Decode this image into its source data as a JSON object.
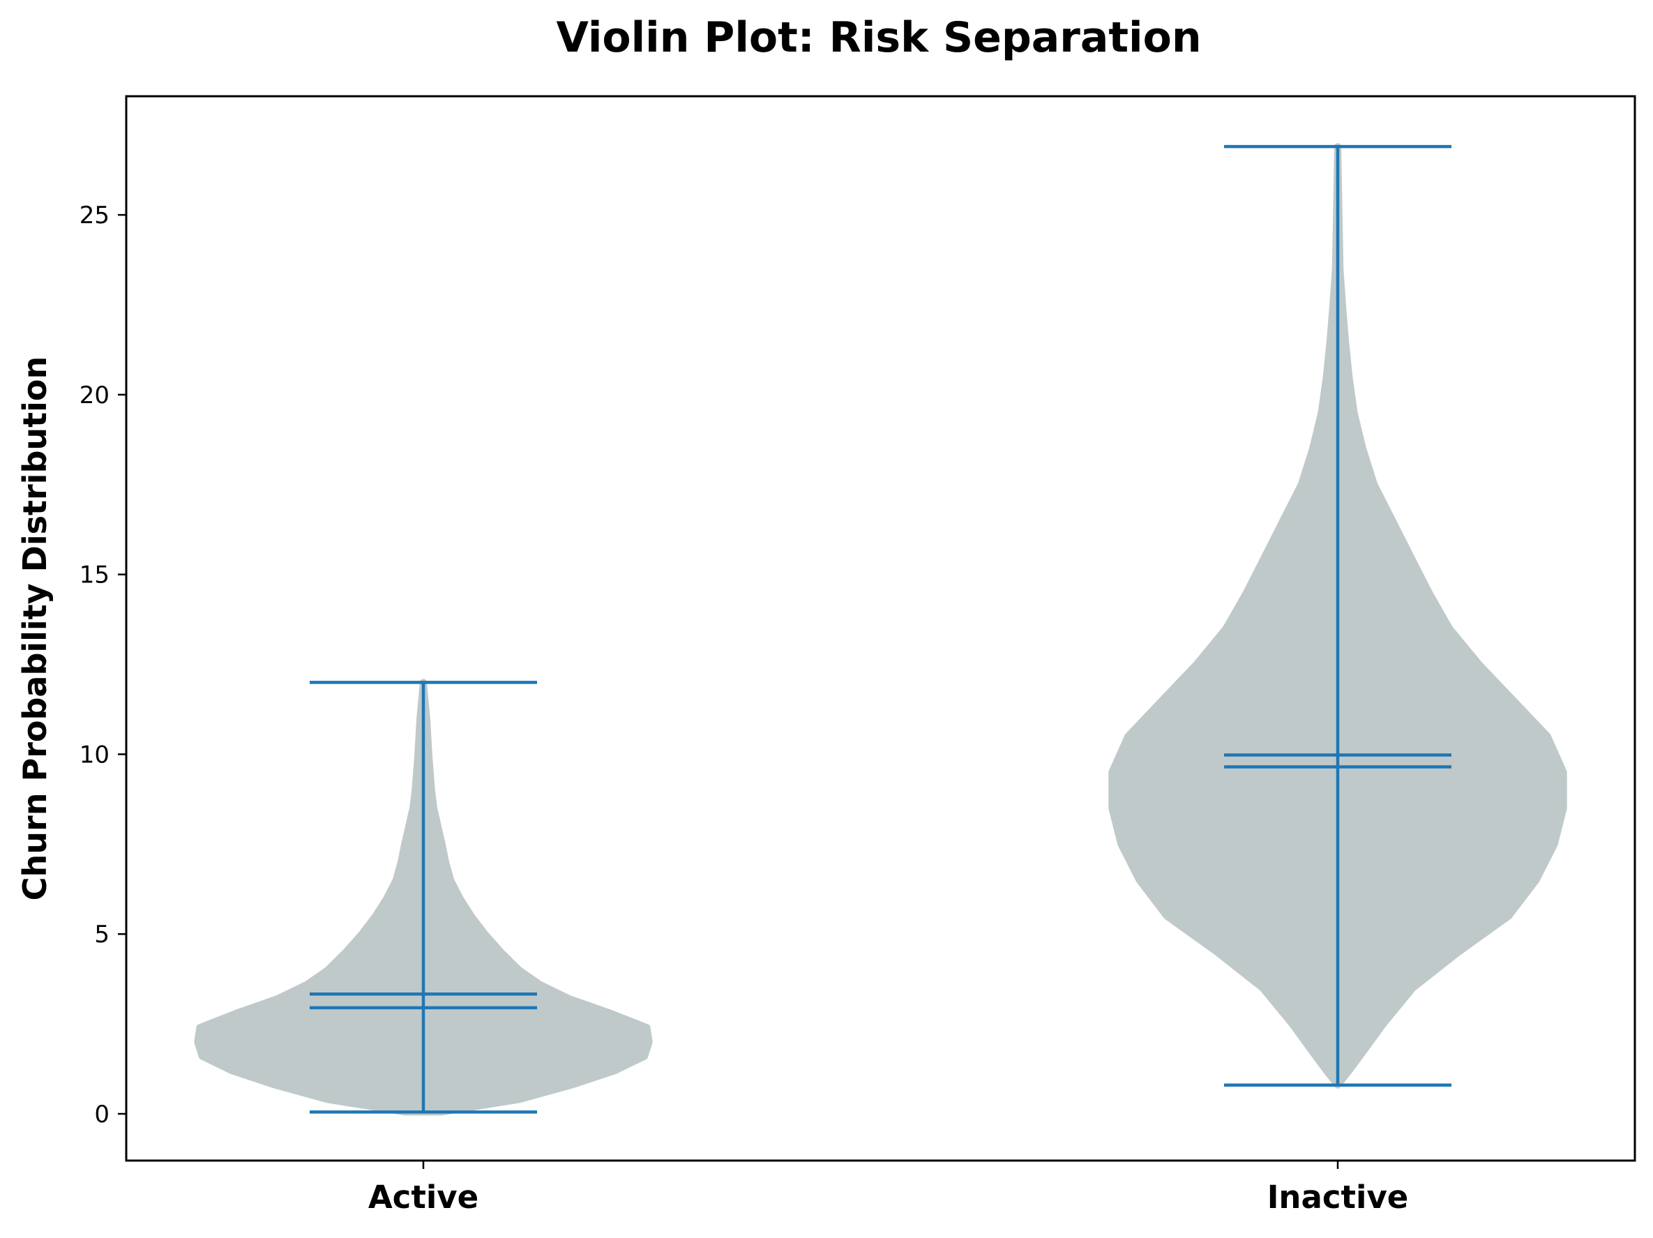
{
  "chart_data": {
    "type": "violin",
    "title": "Violin Plot: Risk Separation",
    "xlabel": "",
    "ylabel": "Churn Probability Distribution",
    "categories": [
      "Active",
      "Inactive"
    ],
    "yticks": [
      0,
      5,
      10,
      15,
      20,
      25
    ],
    "ylim": [
      -1.3,
      28.3
    ],
    "grid": false,
    "colors": {
      "body": "#c0c9c9",
      "lines": "#1f77b4"
    },
    "series": [
      {
        "category": "Active",
        "min": 0.05,
        "max": 12.0,
        "mean": 3.33,
        "median": 2.95,
        "density": [
          [
            0.05,
            0.08
          ],
          [
            0.4,
            0.42
          ],
          [
            0.8,
            0.65
          ],
          [
            1.2,
            0.84
          ],
          [
            1.6,
            0.97
          ],
          [
            2.0,
            0.99
          ],
          [
            2.4,
            0.98
          ],
          [
            2.8,
            0.82
          ],
          [
            3.2,
            0.64
          ],
          [
            3.6,
            0.51
          ],
          [
            4.0,
            0.42
          ],
          [
            4.5,
            0.34
          ],
          [
            5.0,
            0.27
          ],
          [
            5.5,
            0.21
          ],
          [
            6.0,
            0.16
          ],
          [
            6.5,
            0.12
          ],
          [
            7.0,
            0.098
          ],
          [
            7.5,
            0.082
          ],
          [
            8.0,
            0.064
          ],
          [
            8.5,
            0.046
          ],
          [
            9.0,
            0.036
          ],
          [
            10.0,
            0.024
          ],
          [
            11.0,
            0.015
          ],
          [
            12.0,
            0.0
          ]
        ]
      },
      {
        "category": "Inactive",
        "min": 0.8,
        "max": 26.9,
        "mean": 9.98,
        "median": 9.65,
        "density": [
          [
            0.8,
            0.0
          ],
          [
            1.2,
            0.05
          ],
          [
            1.8,
            0.12
          ],
          [
            2.5,
            0.2
          ],
          [
            3.5,
            0.33
          ],
          [
            4.5,
            0.53
          ],
          [
            5.5,
            0.75
          ],
          [
            6.5,
            0.87
          ],
          [
            7.5,
            0.95
          ],
          [
            8.5,
            0.99
          ],
          [
            9.5,
            0.99
          ],
          [
            10.5,
            0.92
          ],
          [
            11.5,
            0.77
          ],
          [
            12.5,
            0.62
          ],
          [
            13.5,
            0.49
          ],
          [
            14.5,
            0.4
          ],
          [
            15.5,
            0.32
          ],
          [
            16.5,
            0.24
          ],
          [
            17.5,
            0.16
          ],
          [
            18.5,
            0.11
          ],
          [
            19.5,
            0.072
          ],
          [
            20.5,
            0.05
          ],
          [
            21.5,
            0.034
          ],
          [
            22.5,
            0.021
          ],
          [
            23.5,
            0.01
          ],
          [
            26.9,
            0.0
          ]
        ]
      }
    ]
  }
}
